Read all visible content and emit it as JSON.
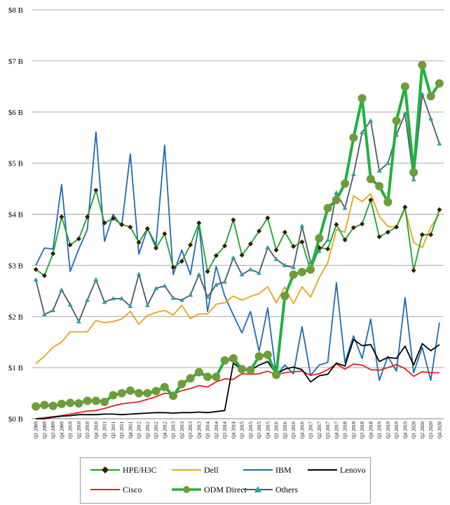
{
  "chart_data": {
    "type": "line",
    "title": "",
    "xlabel": "",
    "ylabel": "",
    "ylim": [
      0,
      8
    ],
    "yticks": [
      0,
      1,
      2,
      3,
      4,
      5,
      6,
      7,
      8
    ],
    "ytick_labels": [
      "$0 B",
      "$1 B",
      "$2 B",
      "$3 B",
      "$4 B",
      "$5 B",
      "$6 B",
      "$7 B",
      "$8 B"
    ],
    "grid": "horizontal",
    "legend_position": "bottom",
    "categories": [
      "Q1 2009",
      "Q2 2009",
      "Q3 2009",
      "Q4 2009",
      "Q1 2010",
      "Q2 2010",
      "Q3 2010",
      "Q4 2010",
      "Q1 2011",
      "Q2 2011",
      "Q3 2011",
      "Q4 2011",
      "Q1 2012",
      "Q2 2012",
      "Q3 2012",
      "Q4 2012",
      "Q1 2013",
      "Q2 2013",
      "Q3 2013",
      "Q4 2013",
      "Q1 2014",
      "Q2 2014",
      "Q3 2014",
      "Q4 2014",
      "Q1 2015",
      "Q2 2015",
      "Q3 2015",
      "Q4 2015",
      "Q1 2016",
      "Q2 2016",
      "Q3 2016",
      "Q4 2016",
      "Q1 2017",
      "Q2 2017",
      "Q3 2017",
      "Q4 2017",
      "Q1 2018",
      "Q2 2018",
      "Q3 2018",
      "Q4 2018",
      "Q1 2019",
      "Q2 2019",
      "Q3 2019",
      "Q4 2019",
      "Q1 2020",
      "Q2 2020",
      "Q3 2020",
      "Q4 2020"
    ],
    "series": [
      {
        "name": "HPE/H3C",
        "color": "#1aa32a",
        "marker": "diamond",
        "marker_color": "#3a1a00",
        "values": [
          2.92,
          2.8,
          3.23,
          3.95,
          3.4,
          3.52,
          3.95,
          4.47,
          3.83,
          3.92,
          3.8,
          3.75,
          3.45,
          3.72,
          3.34,
          3.62,
          2.96,
          3.08,
          3.4,
          3.83,
          2.88,
          3.19,
          3.38,
          3.89,
          3.2,
          3.42,
          3.67,
          3.93,
          3.3,
          3.65,
          3.37,
          3.46,
          2.9,
          3.35,
          3.32,
          3.8,
          3.5,
          3.74,
          3.81,
          4.28,
          3.56,
          3.65,
          3.75,
          4.14,
          2.9,
          3.6,
          3.6,
          4.09
        ]
      },
      {
        "name": "Dell",
        "color": "#e8a319",
        "marker": "none",
        "values": [
          1.08,
          1.22,
          1.4,
          1.5,
          1.7,
          1.7,
          1.7,
          1.92,
          1.88,
          1.9,
          1.95,
          2.1,
          1.85,
          2.02,
          2.08,
          2.12,
          2.03,
          2.22,
          1.96,
          2.05,
          2.05,
          2.24,
          2.27,
          2.4,
          2.32,
          2.39,
          2.45,
          2.58,
          2.27,
          2.58,
          2.25,
          2.58,
          2.38,
          2.76,
          3.05,
          3.7,
          3.65,
          4.36,
          4.25,
          4.4,
          3.96,
          3.76,
          3.75,
          4.1,
          3.45,
          3.35,
          3.75,
          4.0
        ]
      },
      {
        "name": "IBM",
        "color": "#1e6bb0",
        "marker": "none",
        "values": [
          3.0,
          3.34,
          3.32,
          4.58,
          2.88,
          3.32,
          3.7,
          5.61,
          3.47,
          4.0,
          3.76,
          5.18,
          3.22,
          3.72,
          3.4,
          5.35,
          2.82,
          3.3,
          2.82,
          3.8,
          2.1,
          2.98,
          2.4,
          2.03,
          1.68,
          2.1,
          1.32,
          2.17,
          0.85,
          1.05,
          0.88,
          1.8,
          0.85,
          1.05,
          1.1,
          2.66,
          1.1,
          1.62,
          1.18,
          1.95,
          0.75,
          1.22,
          0.93,
          2.37,
          0.9,
          1.4,
          0.75,
          1.88
        ]
      },
      {
        "name": "Lenovo",
        "color": "#000000",
        "marker": "none",
        "values": [
          0.0,
          0.0,
          0.03,
          0.05,
          0.06,
          0.08,
          0.08,
          0.08,
          0.09,
          0.09,
          0.08,
          0.09,
          0.1,
          0.11,
          0.12,
          0.12,
          0.11,
          0.12,
          0.12,
          0.13,
          0.12,
          0.14,
          0.16,
          1.09,
          0.96,
          0.95,
          1.05,
          1.12,
          0.87,
          0.97,
          1.01,
          0.96,
          0.72,
          0.84,
          0.87,
          1.09,
          1.03,
          1.55,
          1.43,
          1.45,
          1.12,
          1.2,
          1.18,
          1.42,
          1.05,
          1.47,
          1.33,
          1.45
        ]
      },
      {
        "name": "Cisco",
        "color": "#e02020",
        "marker": "none",
        "values": [
          0.0,
          0.02,
          0.04,
          0.06,
          0.09,
          0.12,
          0.15,
          0.16,
          0.2,
          0.25,
          0.29,
          0.31,
          0.33,
          0.38,
          0.43,
          0.5,
          0.48,
          0.55,
          0.59,
          0.65,
          0.62,
          0.72,
          0.78,
          0.77,
          0.88,
          0.87,
          0.88,
          0.93,
          0.86,
          0.9,
          0.92,
          0.93,
          0.85,
          0.88,
          0.96,
          1.07,
          0.97,
          1.07,
          1.05,
          0.96,
          0.95,
          1.0,
          1.06,
          0.98,
          0.83,
          0.92,
          0.9,
          0.9
        ]
      },
      {
        "name": "ODM Direct",
        "color": "#21b140",
        "marker": "circle",
        "marker_color": "#6f9c3b",
        "values": [
          0.24,
          0.27,
          0.25,
          0.29,
          0.31,
          0.3,
          0.35,
          0.35,
          0.33,
          0.46,
          0.5,
          0.55,
          0.5,
          0.5,
          0.54,
          0.62,
          0.45,
          0.68,
          0.79,
          0.91,
          0.82,
          0.82,
          1.14,
          1.18,
          0.97,
          0.95,
          1.22,
          1.25,
          0.86,
          2.4,
          2.82,
          2.87,
          2.92,
          3.53,
          4.12,
          4.28,
          4.6,
          5.5,
          6.27,
          4.69,
          4.55,
          4.24,
          5.83,
          6.5,
          4.82,
          6.92,
          6.31,
          6.56
        ]
      },
      {
        "name": "Others",
        "color": "#4a5866",
        "marker": "triangle",
        "marker_color": "#2aa0a0",
        "values": [
          2.72,
          2.04,
          2.12,
          2.52,
          2.23,
          1.9,
          2.32,
          2.72,
          2.28,
          2.35,
          2.35,
          2.2,
          2.83,
          2.22,
          2.55,
          2.6,
          2.36,
          2.32,
          2.42,
          2.82,
          2.38,
          2.62,
          2.68,
          3.15,
          2.82,
          2.92,
          2.85,
          3.35,
          3.12,
          3.0,
          2.96,
          3.77,
          3.06,
          3.28,
          3.5,
          4.42,
          4.12,
          4.78,
          5.6,
          5.83,
          4.85,
          5.0,
          5.55,
          5.97,
          4.68,
          6.35,
          5.87,
          5.38
        ]
      }
    ]
  }
}
